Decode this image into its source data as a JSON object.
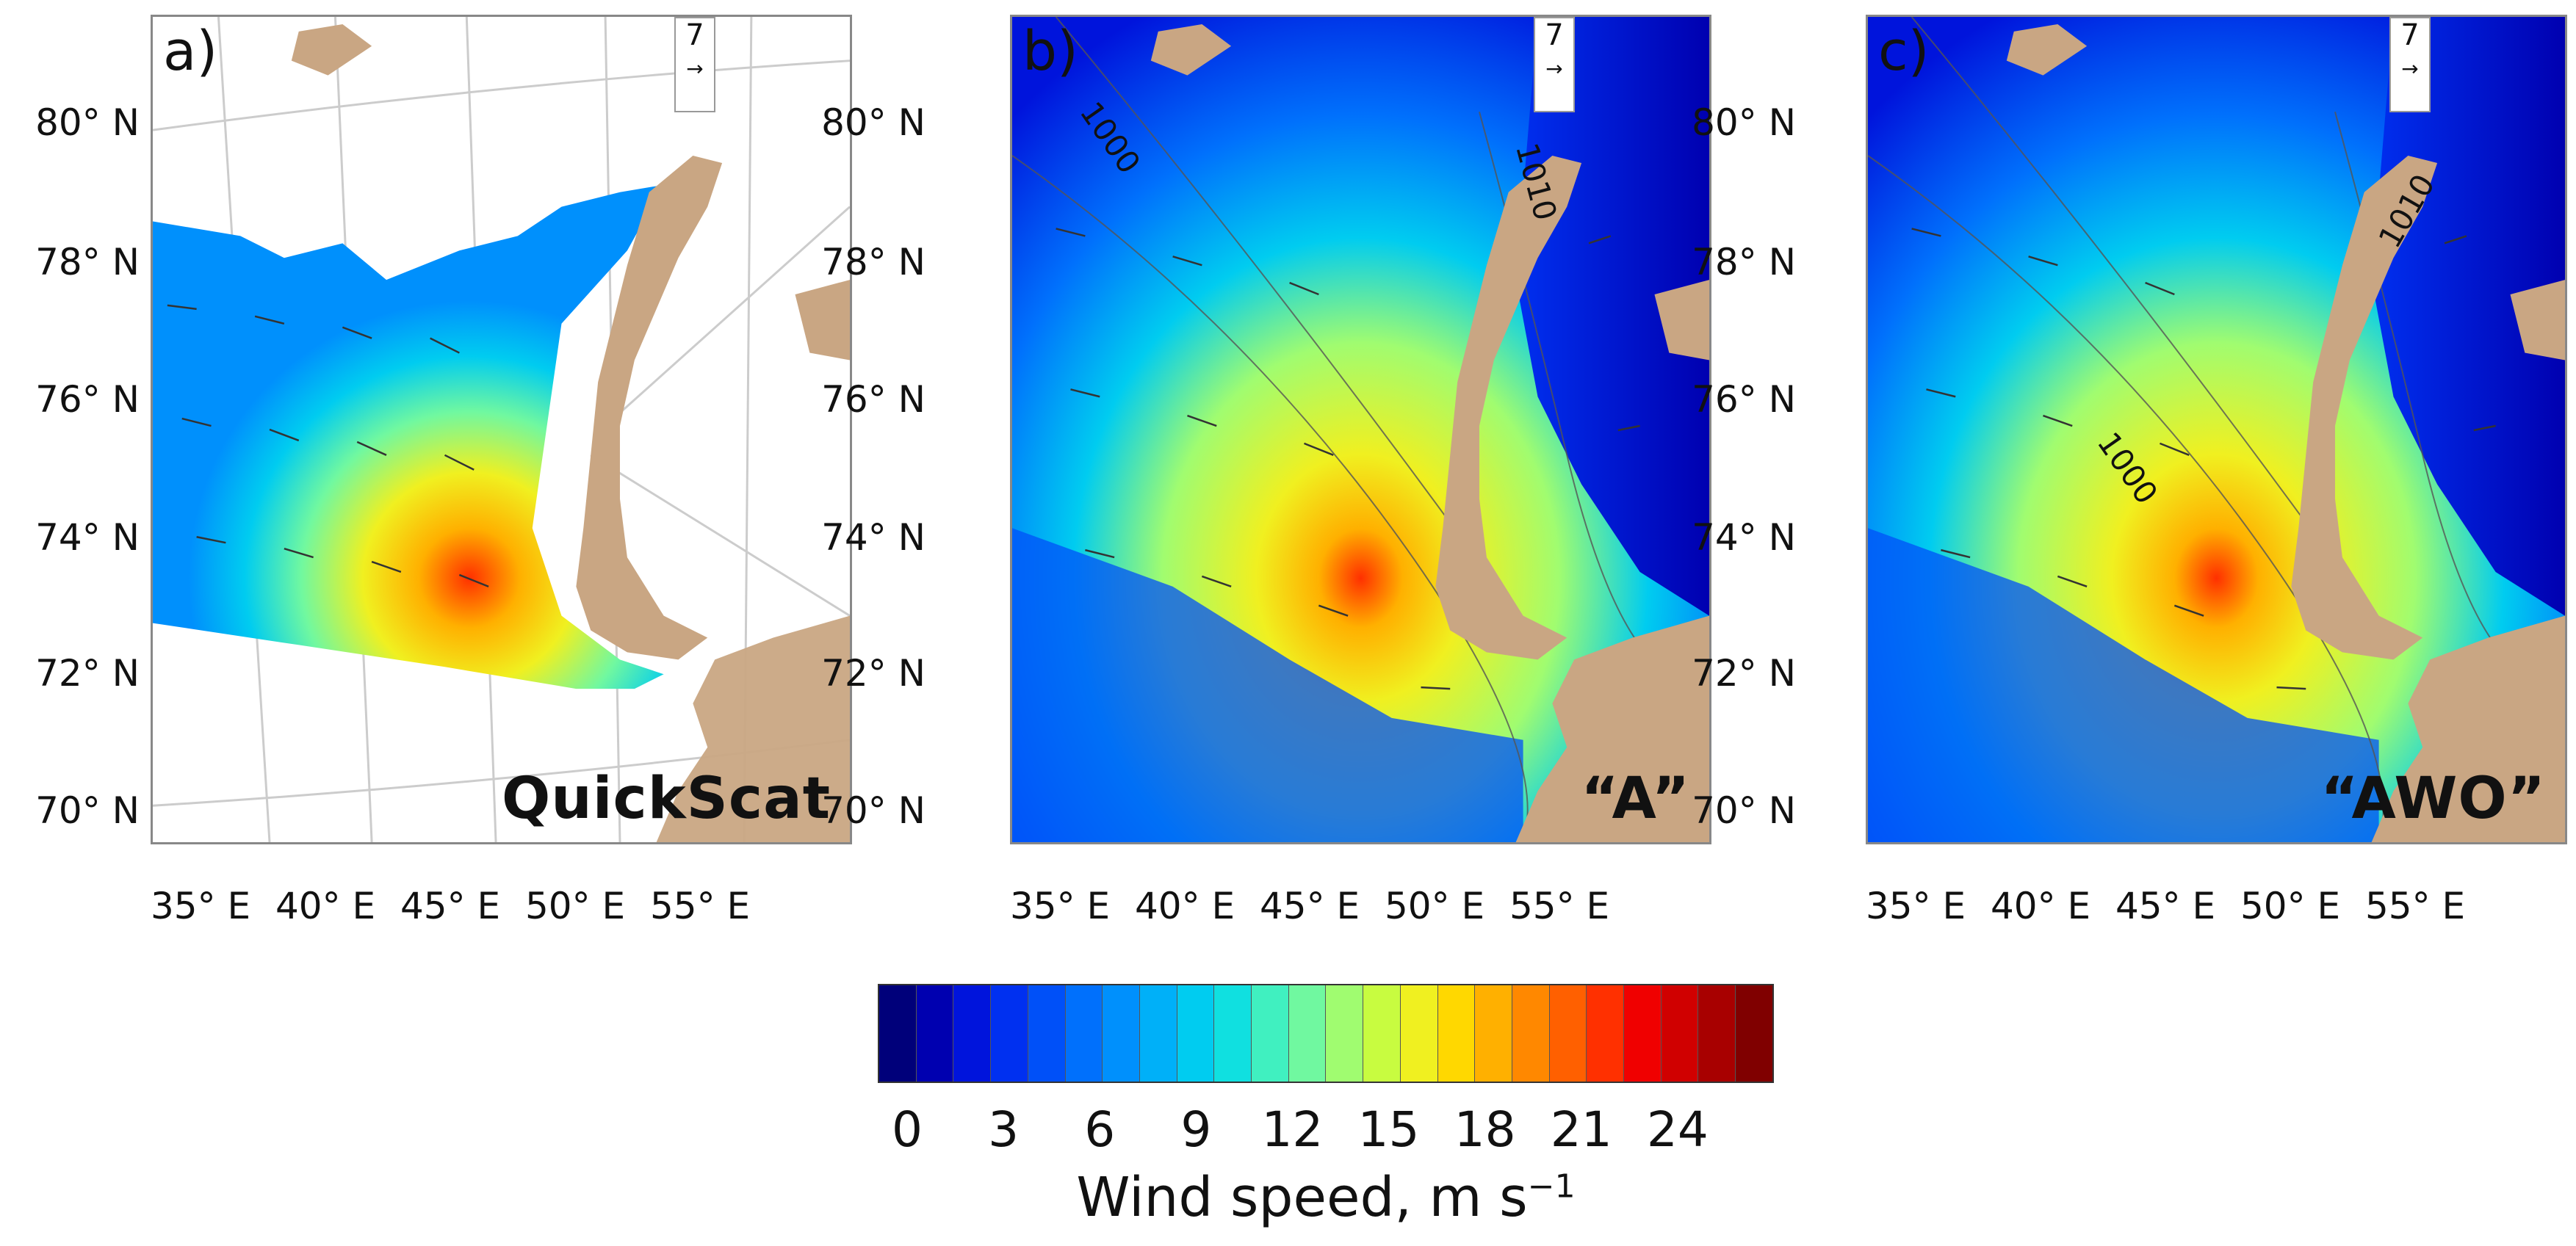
{
  "panels": [
    {
      "label": "a)",
      "name": "QuickScat",
      "type": "quickscat"
    },
    {
      "label": "b)",
      "name": "“A”",
      "type": "model",
      "isobars": [
        "1000",
        "1010"
      ]
    },
    {
      "label": "c)",
      "name": "“AWO”",
      "type": "model",
      "isobars": [
        "1000",
        "1010"
      ]
    }
  ],
  "reference_vector": {
    "value": "7",
    "arrow": "→"
  },
  "latitude_labels": [
    "80° N",
    "78° N",
    "76° N",
    "74° N",
    "72° N",
    "70° N"
  ],
  "longitude_labels": [
    "35° E",
    "40° E",
    "45° E",
    "50° E",
    "55° E"
  ],
  "colorbar": {
    "ticks": [
      "0",
      "3",
      "6",
      "9",
      "12",
      "15",
      "18",
      "21",
      "24"
    ],
    "label": "Wind speed, m s",
    "label_sup": "−1",
    "colors": [
      "#00007a",
      "#0000b0",
      "#0014dc",
      "#0030f0",
      "#0050f8",
      "#0070fc",
      "#0090fc",
      "#00b0f8",
      "#00ccf0",
      "#10e0e0",
      "#40f0c0",
      "#70f8a0",
      "#a0fc70",
      "#c8fc40",
      "#f0f020",
      "#ffd800",
      "#ffb000",
      "#ff8800",
      "#ff6000",
      "#ff3000",
      "#f00000",
      "#d00000",
      "#a80000",
      "#800000"
    ],
    "land_color": "#c9a683"
  }
}
